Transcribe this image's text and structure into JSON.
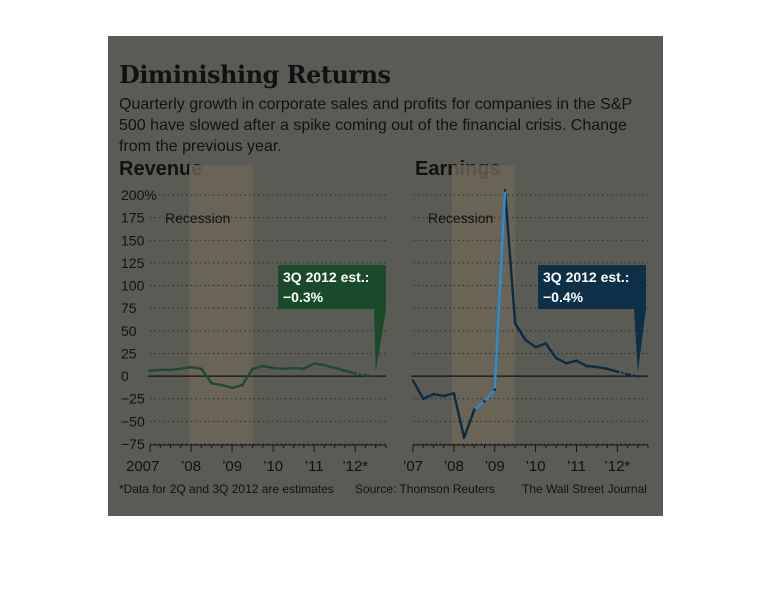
{
  "title": "Diminishing Returns",
  "subtitle": "Quarterly growth in corporate sales and profits for companies in the S&P 500 have slowed after a spike coming out of the financial crisis. Change from the previous year.",
  "footnote": "*Data for 2Q and 3Q 2012 are estimates",
  "source": "Source: Thomson Reuters",
  "credit": "The Wall Street Journal",
  "colors": {
    "background": "#5b5b55",
    "recession_band": "#6e6657",
    "revenue_line": "#1e4a2e",
    "revenue_callout": "#1a4a2a",
    "earnings_line": "#0c2a40",
    "earnings_callout": "#0d3048",
    "earnings_highlight": "#2e8bd0",
    "grid": "#2a2a26",
    "zero_line": "#111111"
  },
  "chart_data": [
    {
      "type": "line",
      "title": "Revenue",
      "ylim": [
        -75,
        200
      ],
      "yticks": [
        -75,
        -50,
        -25,
        0,
        25,
        50,
        75,
        100,
        125,
        150,
        175,
        200
      ],
      "ytick_labels": [
        "−75",
        "−50",
        "−25",
        "0",
        "25",
        "50",
        "75",
        "100",
        "125",
        "150",
        "175",
        "200%"
      ],
      "xlim": [
        2007.0,
        2012.75
      ],
      "xtick_labels": [
        "2007",
        "’08",
        "’09",
        "’10",
        "’11",
        "’12*"
      ],
      "grid": true,
      "recession_label": "Recession",
      "recession": [
        2007.95,
        2009.5
      ],
      "callout": {
        "label": "3Q 2012 est.:",
        "value": "−0.3%"
      },
      "x": [
        2007.0,
        2007.25,
        2007.5,
        2007.75,
        2008.0,
        2008.25,
        2008.5,
        2008.75,
        2009.0,
        2009.25,
        2009.5,
        2009.75,
        2010.0,
        2010.25,
        2010.5,
        2010.75,
        2011.0,
        2011.25,
        2011.5,
        2011.75,
        2012.0,
        2012.25,
        2012.5
      ],
      "values": [
        6,
        7,
        7,
        8,
        10,
        8,
        -8,
        -10,
        -13,
        -10,
        8,
        11,
        9,
        8,
        9,
        8,
        14,
        12,
        9,
        6,
        3,
        1,
        -0.3
      ],
      "estimate_from_index": 21
    },
    {
      "type": "line",
      "title": "Earnings",
      "ylim": [
        -75,
        200
      ],
      "xlim": [
        2007.0,
        2012.75
      ],
      "xtick_labels": [
        "’07",
        "’08",
        "’09",
        "’10",
        "’11",
        "’12*"
      ],
      "grid": true,
      "recession_label": "Recession",
      "recession": [
        2007.95,
        2009.5
      ],
      "callout": {
        "label": "3Q 2012 est.:",
        "value": "−0.4%"
      },
      "x": [
        2007.0,
        2007.25,
        2007.5,
        2007.75,
        2008.0,
        2008.25,
        2008.5,
        2008.75,
        2009.0,
        2009.25,
        2009.5,
        2009.75,
        2010.0,
        2010.25,
        2010.5,
        2010.75,
        2011.0,
        2011.25,
        2011.5,
        2011.75,
        2012.0,
        2012.25,
        2012.5
      ],
      "values": [
        -5,
        -25,
        -20,
        -22,
        -19,
        -68,
        -37,
        -28,
        -15,
        205,
        58,
        40,
        32,
        36,
        20,
        14,
        17,
        11,
        10,
        8,
        5,
        2,
        -0.4
      ],
      "highlight_range": [
        6,
        8
      ],
      "estimate_from_index": 21
    }
  ]
}
